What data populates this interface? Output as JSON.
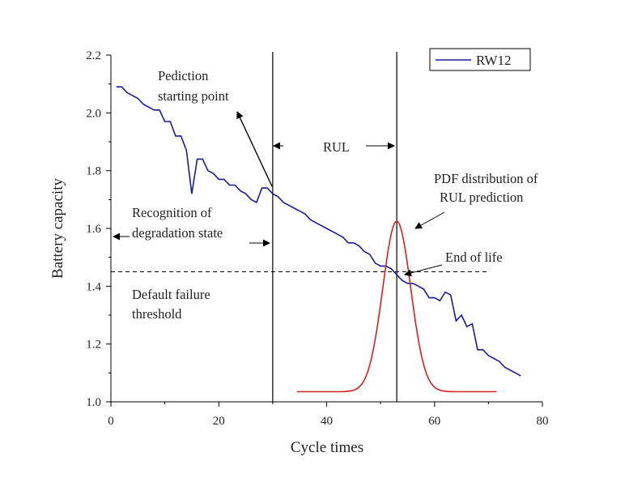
{
  "chart_data": {
    "type": "line",
    "xlabel": "Cycle times",
    "ylabel": "Battery capacity",
    "xlim": [
      0,
      80
    ],
    "ylim": [
      1.0,
      2.2
    ],
    "xticks": [
      "0",
      "20",
      "40",
      "60",
      "80"
    ],
    "yticks": [
      "1.0",
      "1.2",
      "1.4",
      "1.6",
      "1.8",
      "2.0",
      "2.2"
    ],
    "legend": {
      "position": "top-right",
      "entries": [
        "RW12"
      ]
    },
    "grid": false,
    "series": [
      {
        "name": "RW12",
        "color": "#1a1aa0",
        "x": [
          1,
          2,
          3,
          4,
          5,
          6,
          7,
          8,
          9,
          10,
          11,
          12,
          13,
          14,
          15,
          16,
          17,
          18,
          19,
          20,
          21,
          22,
          23,
          24,
          25,
          26,
          27,
          28,
          29,
          30,
          31,
          32,
          33,
          34,
          35,
          36,
          37,
          38,
          39,
          40,
          41,
          42,
          43,
          44,
          45,
          46,
          47,
          48,
          49,
          50,
          51,
          52,
          53,
          54,
          55,
          56,
          57,
          58,
          59,
          60,
          61,
          62,
          63,
          64,
          65,
          66,
          67,
          68,
          69,
          70,
          71,
          72,
          73,
          74,
          75,
          76
        ],
        "y": [
          2.09,
          2.09,
          2.07,
          2.06,
          2.05,
          2.03,
          2.02,
          2.01,
          2.01,
          1.97,
          1.97,
          1.92,
          1.92,
          1.87,
          1.72,
          1.84,
          1.84,
          1.8,
          1.79,
          1.77,
          1.77,
          1.75,
          1.75,
          1.73,
          1.72,
          1.7,
          1.69,
          1.74,
          1.74,
          1.72,
          1.71,
          1.69,
          1.68,
          1.67,
          1.66,
          1.65,
          1.63,
          1.62,
          1.61,
          1.6,
          1.59,
          1.58,
          1.57,
          1.55,
          1.55,
          1.54,
          1.52,
          1.51,
          1.48,
          1.47,
          1.47,
          1.46,
          1.44,
          1.42,
          1.41,
          1.41,
          1.4,
          1.39,
          1.36,
          1.36,
          1.35,
          1.38,
          1.37,
          1.28,
          1.3,
          1.26,
          1.27,
          1.18,
          1.18,
          1.16,
          1.15,
          1.14,
          1.12,
          1.11,
          1.1,
          1.09
        ]
      },
      {
        "name": "",
        "kind": "pdf",
        "color": "#d42020",
        "x_range": [
          34.5,
          71.5
        ],
        "mean": 53,
        "sd": 2.6,
        "baseline": 1.035,
        "peak": 1.625
      }
    ],
    "vlines": [
      {
        "x": 30,
        "color": "#000000"
      },
      {
        "x": 53,
        "color": "#000000"
      }
    ],
    "hlines": [
      {
        "y": 1.45,
        "x_range": [
          0,
          70
        ],
        "style": "dashed",
        "color": "#000000"
      }
    ],
    "annotations": [
      {
        "lines": [
          "Pediction",
          "starting point"
        ]
      },
      {
        "lines": [
          "RUL"
        ]
      },
      {
        "lines": [
          "PDF distribution of",
          "RUL prediction"
        ]
      },
      {
        "lines": [
          "Recognition of",
          "degradation state"
        ]
      },
      {
        "lines": [
          "End of life"
        ]
      },
      {
        "lines": [
          "Default failure",
          "threshold"
        ]
      }
    ]
  }
}
